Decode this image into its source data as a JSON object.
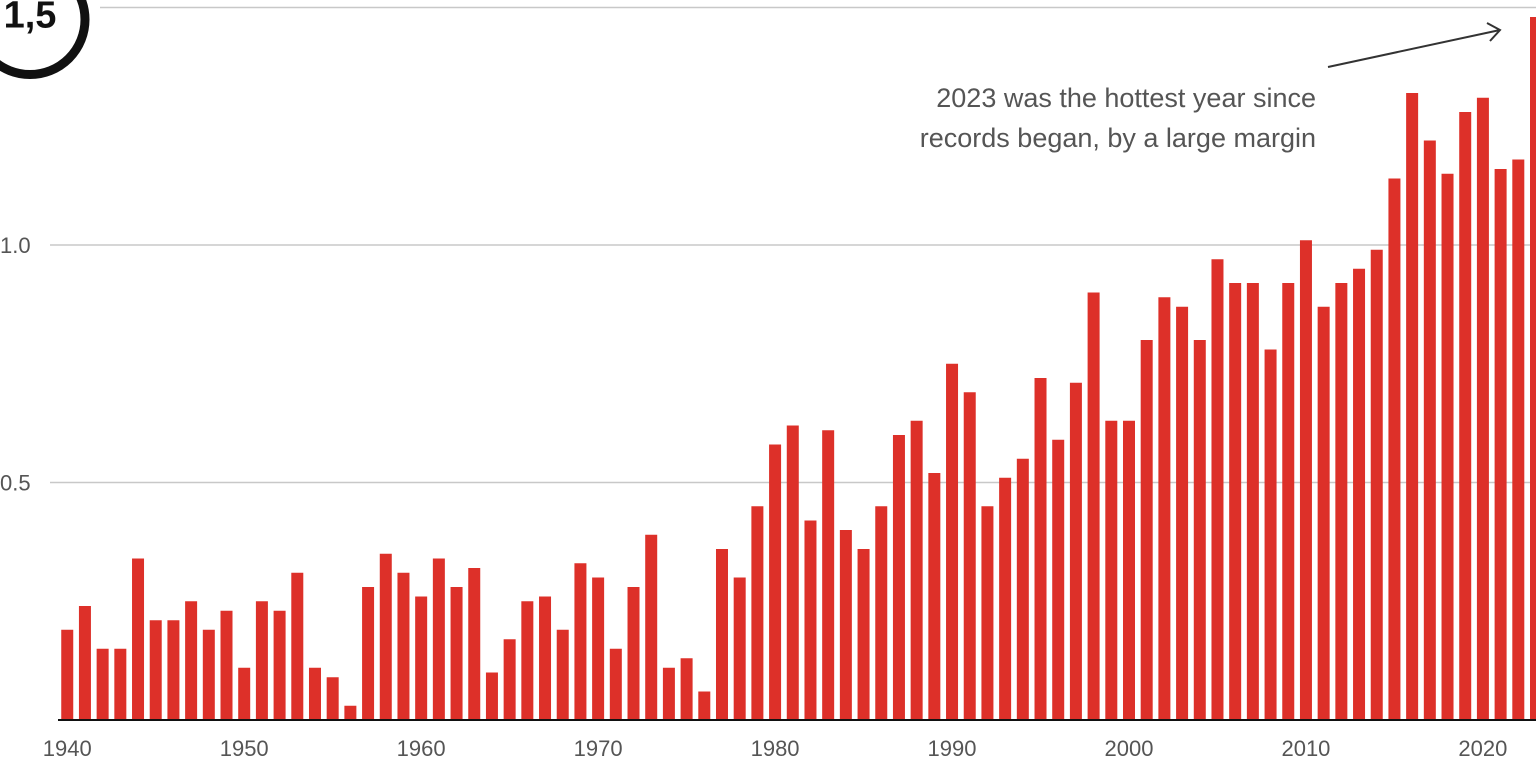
{
  "chart_data": {
    "type": "bar",
    "annotation": [
      "2023 was the hottest year since",
      "records began, by a large margin"
    ],
    "x": [
      1940,
      1941,
      1942,
      1943,
      1944,
      1945,
      1946,
      1947,
      1948,
      1949,
      1950,
      1951,
      1952,
      1953,
      1954,
      1955,
      1956,
      1957,
      1958,
      1959,
      1960,
      1961,
      1962,
      1963,
      1964,
      1965,
      1966,
      1967,
      1968,
      1969,
      1970,
      1971,
      1972,
      1973,
      1974,
      1975,
      1976,
      1977,
      1978,
      1979,
      1980,
      1981,
      1982,
      1983,
      1984,
      1985,
      1986,
      1987,
      1988,
      1989,
      1990,
      1991,
      1992,
      1993,
      1994,
      1995,
      1996,
      1997,
      1998,
      1999,
      2000,
      2001,
      2002,
      2003,
      2004,
      2005,
      2006,
      2007,
      2008,
      2009,
      2010,
      2011,
      2012,
      2013,
      2014,
      2015,
      2016,
      2017,
      2018,
      2019,
      2020,
      2021,
      2022,
      2023
    ],
    "values": [
      0.19,
      0.24,
      0.15,
      0.15,
      0.34,
      0.21,
      0.21,
      0.25,
      0.19,
      0.23,
      0.11,
      0.25,
      0.23,
      0.31,
      0.11,
      0.09,
      0.03,
      0.28,
      0.35,
      0.31,
      0.26,
      0.34,
      0.28,
      0.32,
      0.1,
      0.17,
      0.25,
      0.26,
      0.19,
      0.33,
      0.3,
      0.15,
      0.28,
      0.39,
      0.11,
      0.13,
      0.06,
      0.36,
      0.3,
      0.45,
      0.58,
      0.62,
      0.42,
      0.61,
      0.4,
      0.36,
      0.45,
      0.6,
      0.63,
      0.52,
      0.75,
      0.69,
      0.45,
      0.51,
      0.55,
      0.72,
      0.59,
      0.71,
      0.9,
      0.63,
      0.63,
      0.8,
      0.89,
      0.87,
      0.8,
      0.97,
      0.92,
      0.92,
      0.78,
      0.92,
      1.01,
      0.87,
      0.92,
      0.95,
      0.99,
      1.14,
      1.32,
      1.22,
      1.15,
      1.28,
      1.31,
      1.16,
      1.18,
      1.48
    ],
    "color": "#dd3029",
    "xlim": [
      1936.2,
      2023
    ],
    "xticks": [
      1940,
      1950,
      1960,
      1970,
      1980,
      1990,
      2000,
      2010,
      2020
    ],
    "ylim": [
      0,
      1.5
    ],
    "yticks": [
      0.5,
      {
        "value": 1,
        "label": "1.0"
      },
      {
        "value": 1.5,
        "label": "1,5"
      }
    ],
    "grid": true
  }
}
